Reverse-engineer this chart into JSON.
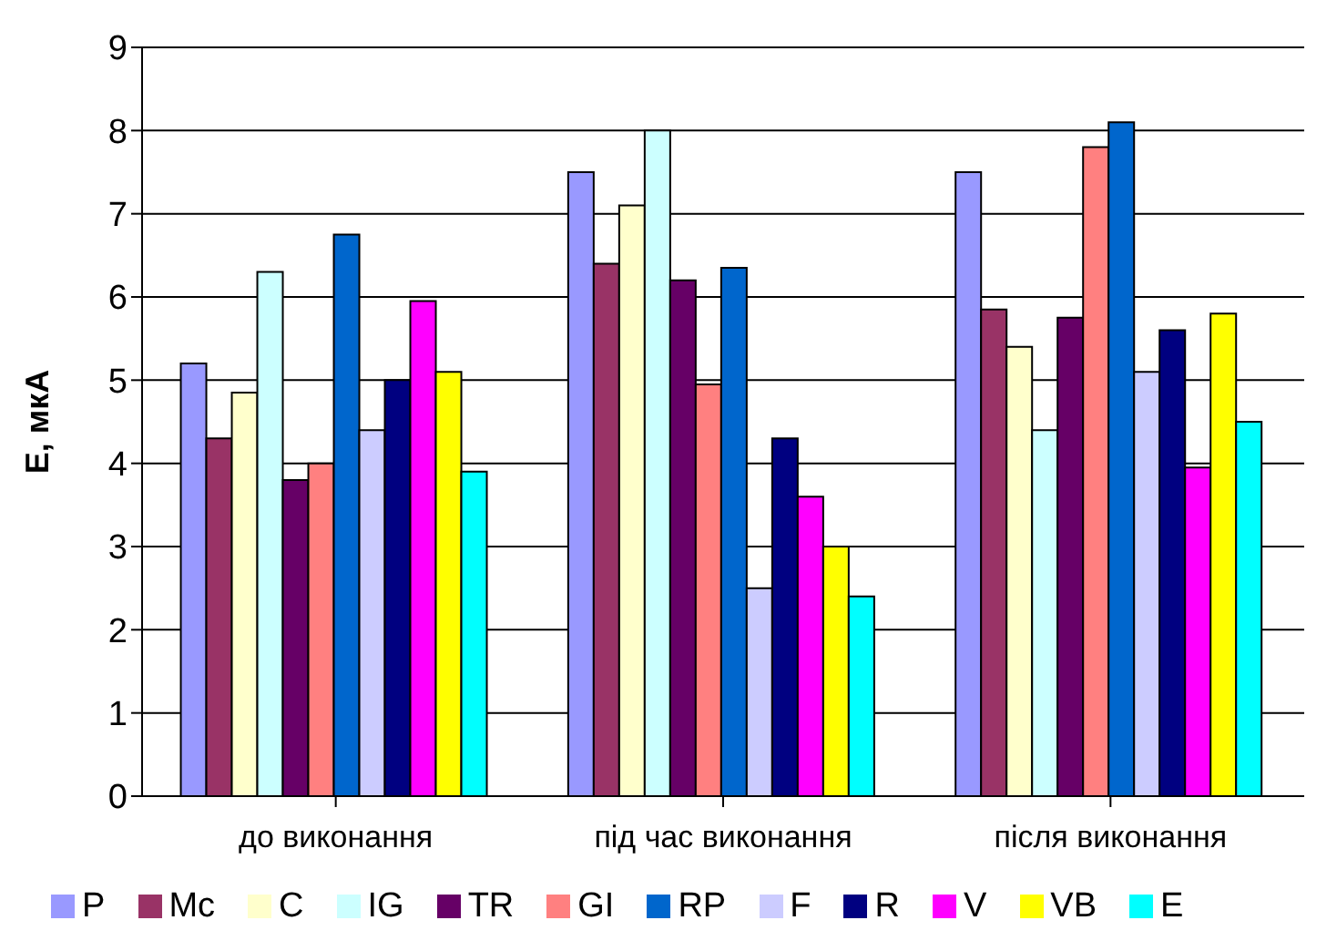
{
  "chart_data": {
    "type": "bar",
    "ylabel": "Е, мкА",
    "categories": [
      "до виконання",
      "під час виконання",
      "після виконання"
    ],
    "series": [
      {
        "name": "P",
        "color": "#9999ff",
        "values": [
          5.2,
          7.5,
          7.5
        ]
      },
      {
        "name": "Mc",
        "color": "#993366",
        "values": [
          4.3,
          6.4,
          5.85
        ]
      },
      {
        "name": "C",
        "color": "#ffffcc",
        "values": [
          4.85,
          7.1,
          5.4
        ]
      },
      {
        "name": "IG",
        "color": "#ccffff",
        "values": [
          6.3,
          8.0,
          4.4
        ]
      },
      {
        "name": "TR",
        "color": "#660066",
        "values": [
          3.8,
          6.2,
          5.75
        ]
      },
      {
        "name": "GI",
        "color": "#ff8080",
        "values": [
          4.0,
          4.95,
          7.8
        ]
      },
      {
        "name": "RP",
        "color": "#0066cc",
        "values": [
          6.75,
          6.35,
          8.1
        ]
      },
      {
        "name": "F",
        "color": "#ccccff",
        "values": [
          4.4,
          2.5,
          5.1
        ]
      },
      {
        "name": "R",
        "color": "#000080",
        "values": [
          5.0,
          4.3,
          5.6
        ]
      },
      {
        "name": "V",
        "color": "#ff00ff",
        "values": [
          5.95,
          3.6,
          3.95
        ]
      },
      {
        "name": "VB",
        "color": "#ffff00",
        "values": [
          5.1,
          3.0,
          5.8
        ]
      },
      {
        "name": "E",
        "color": "#00ffff",
        "values": [
          3.9,
          2.4,
          4.5
        ]
      }
    ],
    "ylim": [
      0,
      9
    ],
    "yticks": [
      0,
      1,
      2,
      3,
      4,
      5,
      6,
      7,
      8,
      9
    ],
    "grid": "y",
    "legend": "bottom"
  }
}
